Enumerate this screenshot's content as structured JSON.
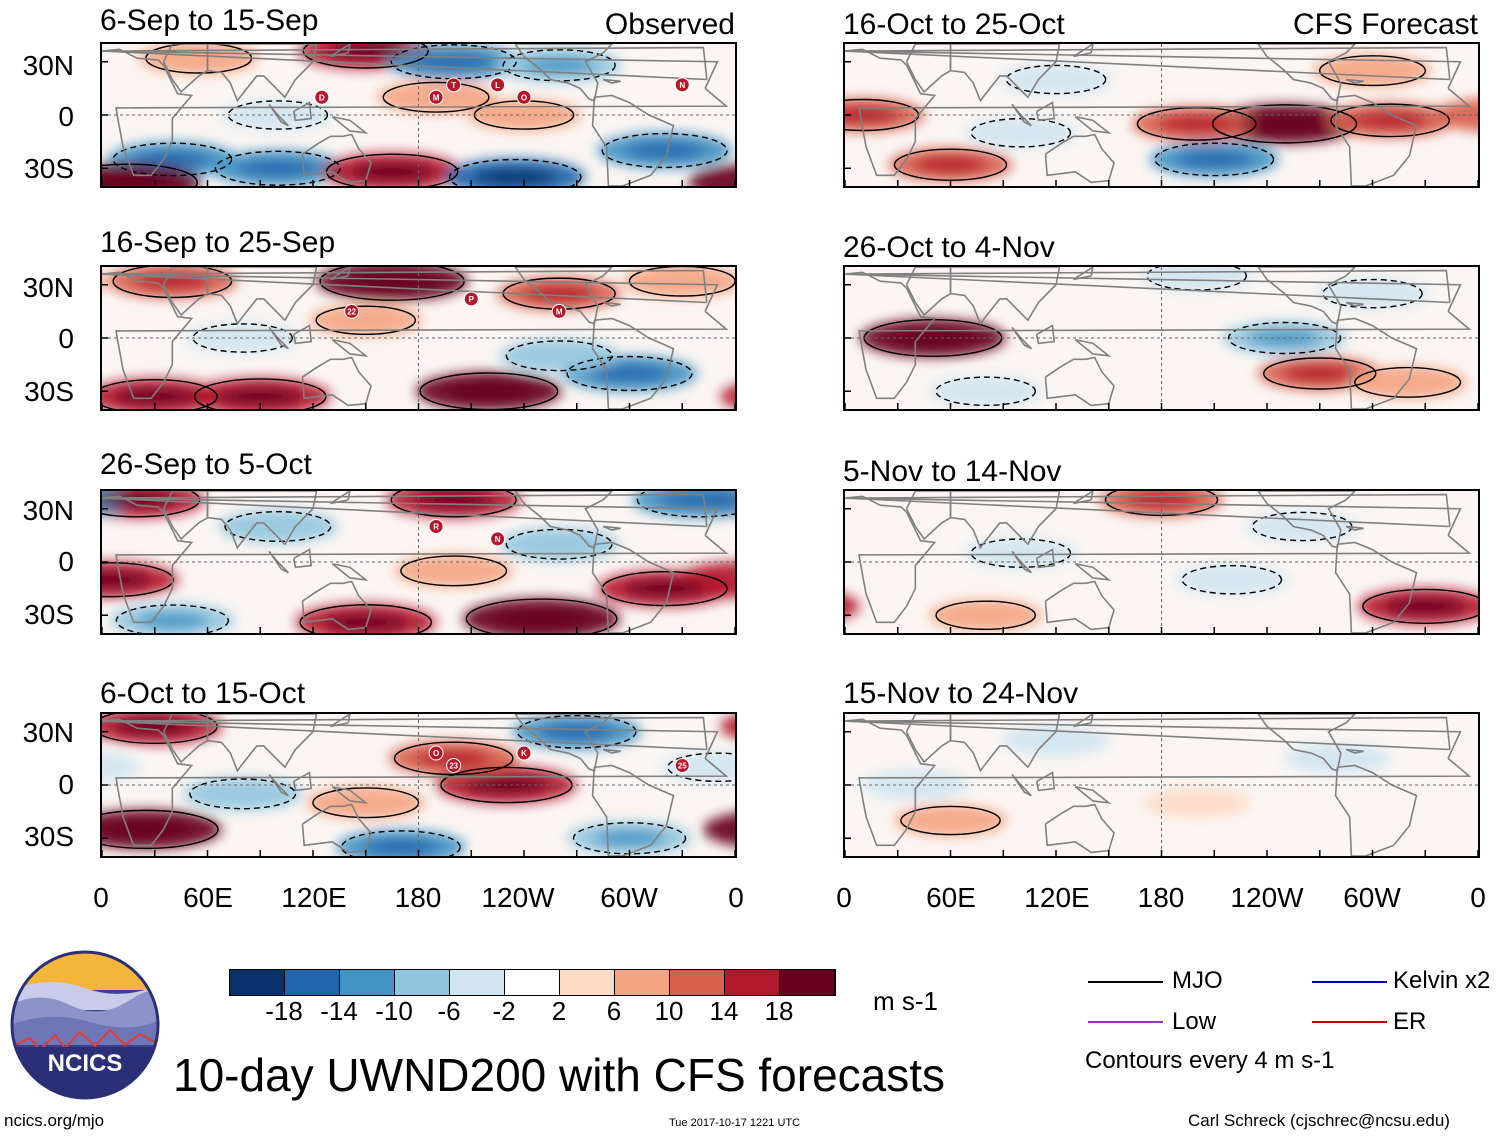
{
  "figure_title": "10-day UWND200 with CFS forecasts",
  "left_column_label": "Observed",
  "right_column_label": "CFS Forecast",
  "colors": {
    "bins": [
      "#08306b",
      "#2166ac",
      "#4393c3",
      "#92c5de",
      "#d1e5f0",
      "#ffffff",
      "#fddbc7",
      "#f4a582",
      "#d6604d",
      "#b2182b",
      "#67001f"
    ],
    "land_outline": "#808080",
    "storm": "#b2182b"
  },
  "chart_data": {
    "type": "heatmap",
    "variable": "200-hPa zonal wind anomaly",
    "units": "m s-1",
    "color_bar": {
      "bounds": [
        -22,
        -18,
        -14,
        -10,
        -6,
        -2,
        2,
        6,
        10,
        14,
        18,
        22
      ],
      "tick_labels": [
        "-18",
        "-14",
        "-10",
        "-6",
        "-2",
        "2",
        "6",
        "10",
        "14",
        "18"
      ]
    },
    "x_ticks": [
      "0",
      "60E",
      "120E",
      "180",
      "120W",
      "60W",
      "0"
    ],
    "y_ticks": [
      "30N",
      "0",
      "30S"
    ],
    "contour_interval": 4,
    "panels": [
      {
        "id": "obs1",
        "period": "6-Sep to 15-Sep",
        "source": "Observed",
        "storms": [
          "D",
          "T",
          "O",
          "N",
          "M",
          "L"
        ],
        "blobs": [
          {
            "lon": 55,
            "lat": 32,
            "val": 8
          },
          {
            "lon": 150,
            "lat": 36,
            "val": 14
          },
          {
            "lon": 200,
            "lat": 30,
            "val": -14
          },
          {
            "lon": 260,
            "lat": 28,
            "val": -10
          },
          {
            "lon": 320,
            "lat": -20,
            "val": -14
          },
          {
            "lon": 40,
            "lat": -25,
            "val": -12
          },
          {
            "lon": 100,
            "lat": -30,
            "val": -14
          },
          {
            "lon": 15,
            "lat": -38,
            "val": 18
          },
          {
            "lon": 165,
            "lat": -32,
            "val": 16
          },
          {
            "lon": 235,
            "lat": -35,
            "val": -16
          },
          {
            "lon": 190,
            "lat": 10,
            "val": 8
          },
          {
            "lon": 100,
            "lat": 0,
            "val": -6
          },
          {
            "lon": 240,
            "lat": 0,
            "val": 6
          }
        ]
      },
      {
        "id": "obs2",
        "period": "16-Sep to 25-Sep",
        "source": "Observed",
        "storms": [
          "22",
          "P",
          "M"
        ],
        "blobs": [
          {
            "lon": 165,
            "lat": 32,
            "val": 20
          },
          {
            "lon": 40,
            "lat": 32,
            "val": 12
          },
          {
            "lon": 260,
            "lat": 25,
            "val": 10
          },
          {
            "lon": 30,
            "lat": -33,
            "val": 14
          },
          {
            "lon": 90,
            "lat": -33,
            "val": 16
          },
          {
            "lon": 220,
            "lat": -30,
            "val": 18
          },
          {
            "lon": 300,
            "lat": -20,
            "val": -14
          },
          {
            "lon": 80,
            "lat": 0,
            "val": -6
          },
          {
            "lon": 330,
            "lat": 32,
            "val": 8
          },
          {
            "lon": 260,
            "lat": -10,
            "val": -8
          },
          {
            "lon": 150,
            "lat": 10,
            "val": 6
          }
        ]
      },
      {
        "id": "obs3",
        "period": "26-Sep to 5-Oct",
        "source": "Observed",
        "storms": [
          "R",
          "N"
        ],
        "blobs": [
          {
            "lon": 20,
            "lat": 35,
            "val": 14
          },
          {
            "lon": 200,
            "lat": 35,
            "val": 14
          },
          {
            "lon": 340,
            "lat": 35,
            "val": -14
          },
          {
            "lon": 5,
            "lat": -10,
            "val": 14
          },
          {
            "lon": 150,
            "lat": -34,
            "val": 16
          },
          {
            "lon": 250,
            "lat": -32,
            "val": 22
          },
          {
            "lon": 320,
            "lat": -15,
            "val": 14
          },
          {
            "lon": 40,
            "lat": -33,
            "val": -10
          },
          {
            "lon": 100,
            "lat": 20,
            "val": -8
          },
          {
            "lon": 200,
            "lat": -5,
            "val": 8
          },
          {
            "lon": 260,
            "lat": 10,
            "val": -8
          }
        ]
      },
      {
        "id": "obs4",
        "period": "6-Oct to 15-Oct",
        "source": "Observed",
        "storms": [
          "23",
          "K",
          "25",
          "O"
        ],
        "blobs": [
          {
            "lon": 30,
            "lat": 33,
            "val": 14
          },
          {
            "lon": 25,
            "lat": -25,
            "val": 20
          },
          {
            "lon": 230,
            "lat": 0,
            "val": 16
          },
          {
            "lon": 200,
            "lat": 15,
            "val": 12
          },
          {
            "lon": 270,
            "lat": 30,
            "val": -12
          },
          {
            "lon": 150,
            "lat": -10,
            "val": 8
          },
          {
            "lon": 80,
            "lat": -5,
            "val": -8
          },
          {
            "lon": 170,
            "lat": -35,
            "val": -12
          },
          {
            "lon": 300,
            "lat": -30,
            "val": -10
          },
          {
            "lon": 350,
            "lat": 10,
            "val": -6
          }
        ]
      },
      {
        "id": "fc1",
        "period": "16-Oct to 25-Oct",
        "source": "CFS Forecast",
        "storms": [],
        "blobs": [
          {
            "lon": 250,
            "lat": -5,
            "val": 20
          },
          {
            "lon": 200,
            "lat": -5,
            "val": 12
          },
          {
            "lon": 310,
            "lat": -3,
            "val": 12
          },
          {
            "lon": 10,
            "lat": 0,
            "val": 10
          },
          {
            "lon": 210,
            "lat": -25,
            "val": -12
          },
          {
            "lon": 120,
            "lat": 20,
            "val": -6
          },
          {
            "lon": 300,
            "lat": 25,
            "val": 8
          },
          {
            "lon": 60,
            "lat": -28,
            "val": 10
          },
          {
            "lon": 100,
            "lat": -10,
            "val": -6
          }
        ]
      },
      {
        "id": "fc2",
        "period": "26-Oct to 4-Nov",
        "source": "CFS Forecast",
        "storms": [],
        "blobs": [
          {
            "lon": 50,
            "lat": 0,
            "val": 18
          },
          {
            "lon": 250,
            "lat": 0,
            "val": -10
          },
          {
            "lon": 270,
            "lat": -20,
            "val": 10
          },
          {
            "lon": 320,
            "lat": -25,
            "val": 8
          },
          {
            "lon": 200,
            "lat": 35,
            "val": -6
          },
          {
            "lon": 80,
            "lat": -30,
            "val": -6
          },
          {
            "lon": 300,
            "lat": 25,
            "val": -6
          }
        ]
      },
      {
        "id": "fc3",
        "period": "5-Nov to 14-Nov",
        "source": "CFS Forecast",
        "storms": [],
        "blobs": [
          {
            "lon": 330,
            "lat": -25,
            "val": 14
          },
          {
            "lon": 100,
            "lat": 5,
            "val": -6
          },
          {
            "lon": 220,
            "lat": -10,
            "val": -6
          },
          {
            "lon": 180,
            "lat": 35,
            "val": 10
          },
          {
            "lon": 80,
            "lat": -30,
            "val": 6
          },
          {
            "lon": 260,
            "lat": 20,
            "val": -6
          }
        ]
      },
      {
        "id": "fc4",
        "period": "15-Nov to 24-Nov",
        "source": "CFS Forecast",
        "storms": [],
        "blobs": [
          {
            "lon": 60,
            "lat": -20,
            "val": 6
          },
          {
            "lon": 200,
            "lat": -10,
            "val": 4
          },
          {
            "lon": 120,
            "lat": 25,
            "val": -4
          },
          {
            "lon": 280,
            "lat": 15,
            "val": -4
          },
          {
            "lon": 40,
            "lat": 0,
            "val": -4
          }
        ]
      }
    ]
  },
  "legend": {
    "units_label": "m s-1",
    "items": [
      {
        "label": "MJO",
        "color": "#000000"
      },
      {
        "label": "Kelvin x2",
        "color": "#0000cc"
      },
      {
        "label": "Low",
        "color": "#9933cc"
      },
      {
        "label": "ER",
        "color": "#cc0000"
      }
    ],
    "contour_note": "Contours every 4 m s-1"
  },
  "logo": {
    "text": "NCICS"
  },
  "footer": {
    "url": "ncics.org/mjo",
    "timestamp": "Tue 2017-10-17 1221 UTC",
    "credit": "Carl Schreck (cjschrec@ncsu.edu)"
  }
}
